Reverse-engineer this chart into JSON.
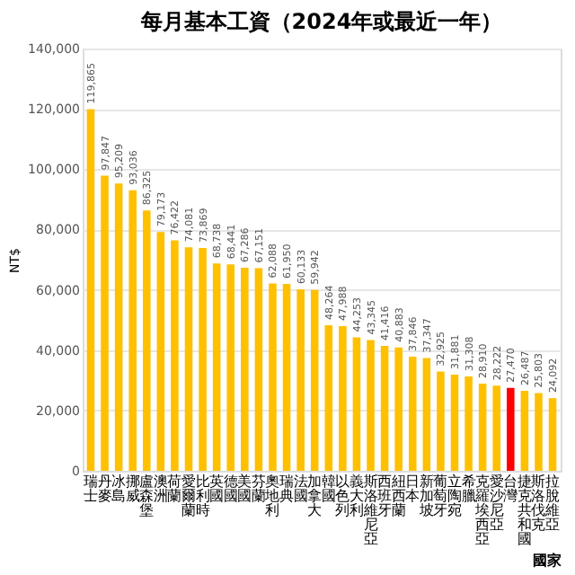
{
  "chart_data": {
    "type": "bar",
    "title": "每月基本工資（2024年或最近一年）",
    "xlabel": "國家",
    "ylabel": "NT$",
    "categories": [
      "瑞士",
      "丹麥",
      "冰島",
      "挪威",
      "盧森堡",
      "澳洲",
      "荷蘭",
      "愛爾蘭",
      "比利時",
      "英國",
      "德國",
      "美國",
      "芬蘭",
      "奧地利",
      "瑞典",
      "法國",
      "加拿大",
      "韓國",
      "以色列",
      "義大利",
      "斯洛維尼亞",
      "西班牙",
      "紐西蘭",
      "日本",
      "新加坡",
      "葡萄牙",
      "立陶宛",
      "希臘",
      "克羅埃西亞",
      "愛沙尼亞",
      "台灣",
      "捷克共和國",
      "斯洛伐克",
      "拉脫維亞"
    ],
    "values": [
      119865,
      97847,
      95209,
      93036,
      86325,
      79173,
      76422,
      74081,
      73869,
      68738,
      68441,
      67286,
      67151,
      62088,
      61950,
      60133,
      59942,
      48264,
      47988,
      44253,
      43345,
      41416,
      40883,
      37846,
      37347,
      32925,
      31881,
      31308,
      28910,
      28222,
      27470,
      26487,
      25803,
      24092
    ],
    "colors": [
      "#ffc000",
      "#ffc000",
      "#ffc000",
      "#ffc000",
      "#ffc000",
      "#ffc000",
      "#ffc000",
      "#ffc000",
      "#ffc000",
      "#ffc000",
      "#ffc000",
      "#ffc000",
      "#ffc000",
      "#ffc000",
      "#ffc000",
      "#ffc000",
      "#ffc000",
      "#ffc000",
      "#ffc000",
      "#ffc000",
      "#ffc000",
      "#ffc000",
      "#ffc000",
      "#ffc000",
      "#ffc000",
      "#ffc000",
      "#ffc000",
      "#ffc000",
      "#ffc000",
      "#ffc000",
      "#ff0000",
      "#ffc000",
      "#ffc000",
      "#ffc000"
    ],
    "ylim": [
      0,
      140000
    ],
    "yticks": [
      {
        "value": 0,
        "label": "0"
      },
      {
        "value": 20000,
        "label": "20,000"
      },
      {
        "value": 40000,
        "label": "40,000"
      },
      {
        "value": 60000,
        "label": "60,000"
      },
      {
        "value": 80000,
        "label": "80,000"
      },
      {
        "value": 100000,
        "label": "100,000"
      },
      {
        "value": 120000,
        "label": "120,000"
      },
      {
        "value": 140000,
        "label": "140,000"
      }
    ],
    "value_labels": [
      "119,865",
      "97,847",
      "95,209",
      "93,036",
      "86,325",
      "79,173",
      "76,422",
      "74,081",
      "73,869",
      "68,738",
      "68,441",
      "67,286",
      "67,151",
      "62,088",
      "61,950",
      "60,133",
      "59,942",
      "48,264",
      "47,988",
      "44,253",
      "43,345",
      "41,416",
      "40,883",
      "37,846",
      "37,347",
      "32,925",
      "31,881",
      "31,308",
      "28,910",
      "28,222",
      "27,470",
      "26,487",
      "25,803",
      "24,092"
    ],
    "grid": "y"
  }
}
